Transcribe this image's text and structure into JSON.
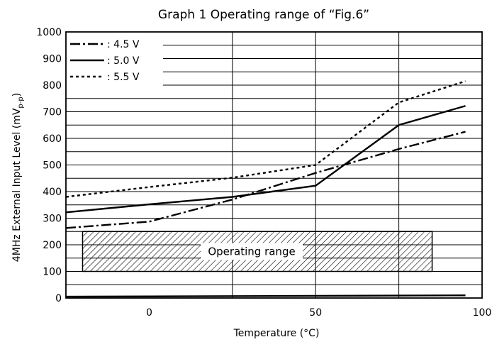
{
  "chart_data": {
    "type": "line",
    "title": "Graph 1   Operating range of “Fig.6”",
    "xlabel": "Temperature (°C)",
    "ylabel_main": "4MHz External Input Level (mV",
    "ylabel_sub": "p-p",
    "ylabel_close": ")",
    "xlim": [
      -25,
      100
    ],
    "ylim": [
      0,
      1000
    ],
    "x_ticks": [
      0,
      50,
      100
    ],
    "y_ticks": [
      0,
      100,
      200,
      300,
      400,
      500,
      600,
      700,
      800,
      900,
      1000
    ],
    "grid": true,
    "legend_position": "top-left",
    "series": [
      {
        "name": ": 4.5 V",
        "style": "dashdot",
        "x": [
          -25,
          0,
          25,
          50,
          75,
          95
        ],
        "y": [
          263,
          287,
          370,
          470,
          560,
          625
        ]
      },
      {
        "name": ": 5.0 V",
        "style": "solid",
        "x": [
          -25,
          0,
          25,
          50,
          75,
          95
        ],
        "y": [
          322,
          352,
          380,
          422,
          650,
          722
        ]
      },
      {
        "name": ": 5.5 V",
        "style": "dotted",
        "x": [
          -25,
          0,
          25,
          50,
          75,
          95
        ],
        "y": [
          380,
          417,
          452,
          500,
          735,
          815
        ]
      },
      {
        "name": "",
        "style": "solid",
        "x": [
          -25,
          95
        ],
        "y": [
          5,
          10
        ]
      }
    ],
    "annotations": [
      {
        "text": "Operating range",
        "x_range": [
          -20,
          85
        ],
        "y_range": [
          100,
          250
        ]
      }
    ]
  }
}
